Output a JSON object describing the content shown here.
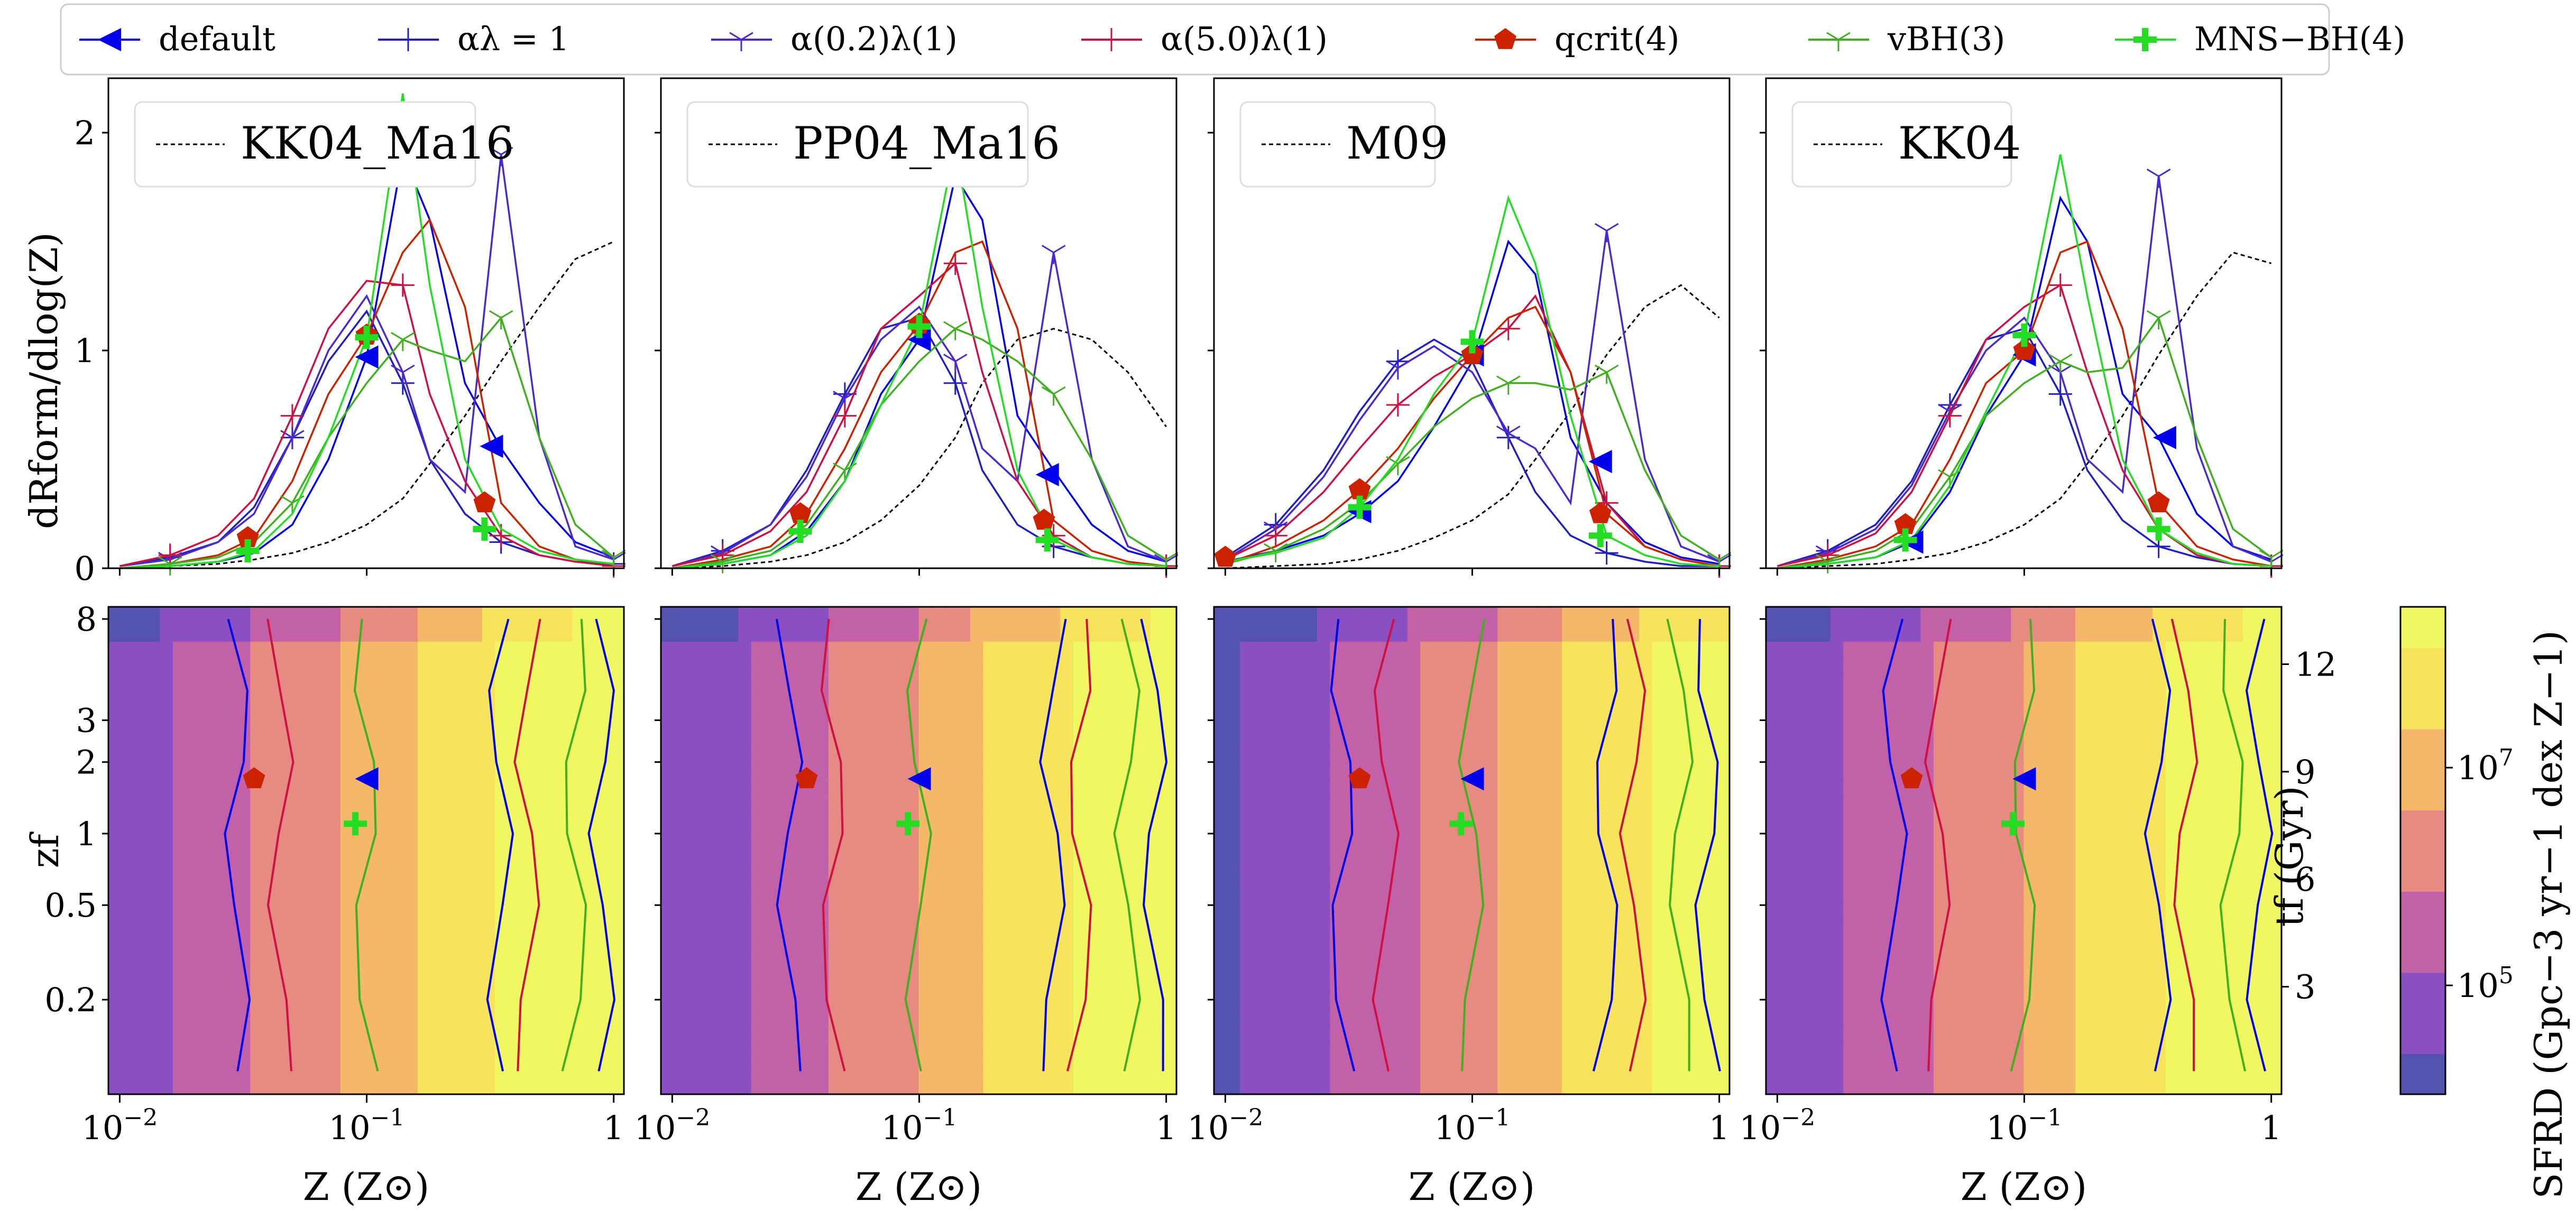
{
  "colors": {
    "default": "#0000ee",
    "alpha_lambda_1": "#2020c0",
    "alpha_0p2": "#4a2ad0",
    "alpha_5p0": "#d01040",
    "q_crit": "#cc2200",
    "v_bh": "#40b020",
    "m_ns_bh": "#22dd22",
    "observed": "#000000",
    "cmap": [
      "#5553b0",
      "#8a4fc2",
      "#c260a8",
      "#e78a82",
      "#f5b86a",
      "#f7e35c",
      "#f0f760"
    ]
  },
  "legend": [
    {
      "key": "default",
      "label": "default",
      "marker": "triangle-left"
    },
    {
      "key": "alpha_lambda_1",
      "label": "αλ = 1",
      "marker": "plus"
    },
    {
      "key": "alpha_0p2",
      "label": "α(0.2)λ(1)",
      "marker": "tri-down"
    },
    {
      "key": "alpha_5p0",
      "label": "α(5.0)λ(1)",
      "marker": "plus"
    },
    {
      "key": "q_crit",
      "label": "qcrit(4)",
      "marker": "pentagon"
    },
    {
      "key": "v_bh",
      "label": "vBH(3)",
      "marker": "tri-down"
    },
    {
      "key": "m_ns_bh",
      "label": "MNS−BH(4)",
      "marker": "plus-bold"
    }
  ],
  "axes": {
    "top_ylabel": "dRform/dlog(Z)",
    "bottom_ylabel": "zf",
    "xlabel": "Z (Z⊙)",
    "right_ylabel": "tf (Gyr)",
    "colorbar_label": "SFRD (Gpc−3 yr−1 dex Z−1)",
    "top_yticks": [
      "0",
      "1",
      "2"
    ],
    "bottom_yticks": [
      "0.2",
      "0.5",
      "1",
      "2",
      "3",
      "8"
    ],
    "right_yticks": [
      "3",
      "6",
      "9",
      "12"
    ],
    "xticks": [
      "10−2",
      "10−1",
      "1"
    ],
    "colorbar_ticks": [
      "105",
      "107"
    ]
  },
  "chart_data": [
    {
      "type": "line",
      "panel": "KK04_Ma16",
      "title": "KK04_Ma16",
      "xlabel": "Z (Z⊙)",
      "ylabel": "dRform/dlog(Z)",
      "xscale": "log",
      "xlim": [
        0.009,
        1.1
      ],
      "ylim": [
        0,
        2.25
      ],
      "x": [
        0.01,
        0.016,
        0.025,
        0.035,
        0.05,
        0.07,
        0.1,
        0.14,
        0.18,
        0.25,
        0.35,
        0.5,
        0.7,
        1.0
      ],
      "series": [
        {
          "key": "observed",
          "name": "KK04_Ma16",
          "values": [
            0.0,
            0.01,
            0.02,
            0.04,
            0.07,
            0.12,
            0.2,
            0.32,
            0.48,
            0.7,
            0.95,
            1.2,
            1.42,
            1.5
          ]
        },
        {
          "key": "default",
          "values": [
            0.0,
            0.01,
            0.03,
            0.07,
            0.2,
            0.5,
            0.97,
            1.9,
            1.6,
            0.85,
            0.55,
            0.3,
            0.12,
            0.05
          ]
        },
        {
          "key": "alpha_lambda_1",
          "values": [
            0.01,
            0.05,
            0.12,
            0.28,
            0.6,
            0.95,
            1.18,
            0.85,
            0.5,
            0.25,
            0.12,
            0.06,
            0.03,
            0.02
          ]
        },
        {
          "key": "alpha_0p2",
          "values": [
            0.01,
            0.04,
            0.12,
            0.25,
            0.6,
            1.0,
            1.25,
            0.9,
            0.5,
            0.35,
            1.9,
            0.6,
            0.1,
            0.04
          ]
        },
        {
          "key": "alpha_5p0",
          "values": [
            0.01,
            0.06,
            0.15,
            0.32,
            0.7,
            1.1,
            1.32,
            1.3,
            0.8,
            0.4,
            0.15,
            0.06,
            0.03,
            0.01
          ]
        },
        {
          "key": "q_crit",
          "values": [
            0.0,
            0.02,
            0.06,
            0.14,
            0.4,
            0.8,
            1.07,
            1.45,
            1.6,
            1.2,
            0.3,
            0.1,
            0.04,
            0.02
          ]
        },
        {
          "key": "v_bh",
          "values": [
            0.0,
            0.02,
            0.05,
            0.12,
            0.3,
            0.6,
            0.85,
            1.05,
            1.0,
            0.95,
            1.15,
            0.6,
            0.2,
            0.05
          ]
        },
        {
          "key": "m_ns_bh",
          "values": [
            0.0,
            0.01,
            0.03,
            0.08,
            0.25,
            0.6,
            1.06,
            2.18,
            1.3,
            0.5,
            0.18,
            0.08,
            0.04,
            0.02
          ]
        }
      ],
      "markers": {
        "default": [
          0.1,
          0.97,
          0.32,
          0.56
        ],
        "q_crit": [
          0.033,
          0.14,
          0.1,
          1.07,
          0.3,
          0.3
        ],
        "m_ns_bh": [
          0.033,
          0.08,
          0.1,
          1.06,
          0.3,
          0.18
        ]
      }
    },
    {
      "type": "line",
      "panel": "PP04_Ma16",
      "title": "PP04_Ma16",
      "xlabel": "Z (Z⊙)",
      "xscale": "log",
      "xlim": [
        0.009,
        1.1
      ],
      "ylim": [
        0,
        2.25
      ],
      "x": [
        0.01,
        0.016,
        0.025,
        0.035,
        0.05,
        0.07,
        0.1,
        0.14,
        0.18,
        0.25,
        0.35,
        0.5,
        0.7,
        1.0
      ],
      "series": [
        {
          "key": "observed",
          "name": "PP04_Ma16",
          "values": [
            0.0,
            0.01,
            0.03,
            0.06,
            0.12,
            0.22,
            0.38,
            0.6,
            0.85,
            1.05,
            1.1,
            1.05,
            0.9,
            0.65
          ]
        },
        {
          "key": "default",
          "values": [
            0.0,
            0.02,
            0.06,
            0.17,
            0.4,
            0.8,
            1.05,
            1.8,
            1.6,
            0.7,
            0.45,
            0.2,
            0.08,
            0.03
          ]
        },
        {
          "key": "alpha_lambda_1",
          "values": [
            0.01,
            0.08,
            0.2,
            0.45,
            0.8,
            1.1,
            1.15,
            0.85,
            0.45,
            0.2,
            0.1,
            0.05,
            0.02,
            0.01
          ]
        },
        {
          "key": "alpha_0p2",
          "values": [
            0.01,
            0.07,
            0.2,
            0.42,
            0.78,
            1.05,
            1.2,
            0.95,
            0.55,
            0.4,
            1.45,
            0.5,
            0.1,
            0.03
          ]
        },
        {
          "key": "alpha_5p0",
          "values": [
            0.01,
            0.06,
            0.17,
            0.35,
            0.7,
            1.1,
            1.25,
            1.4,
            0.9,
            0.4,
            0.15,
            0.05,
            0.02,
            0.01
          ]
        },
        {
          "key": "q_crit",
          "values": [
            0.0,
            0.04,
            0.1,
            0.25,
            0.55,
            0.9,
            1.12,
            1.45,
            1.5,
            1.1,
            0.22,
            0.08,
            0.03,
            0.01
          ]
        },
        {
          "key": "v_bh",
          "values": [
            0.0,
            0.03,
            0.08,
            0.2,
            0.45,
            0.75,
            0.95,
            1.1,
            1.05,
            0.95,
            0.8,
            0.5,
            0.15,
            0.04
          ]
        },
        {
          "key": "m_ns_bh",
          "values": [
            0.0,
            0.02,
            0.06,
            0.15,
            0.4,
            0.75,
            1.11,
            1.95,
            1.2,
            0.45,
            0.13,
            0.05,
            0.02,
            0.01
          ]
        }
      ],
      "markers": {
        "default": [
          0.1,
          1.05,
          0.33,
          0.43
        ],
        "q_crit": [
          0.033,
          0.25,
          0.1,
          1.12,
          0.32,
          0.22
        ],
        "m_ns_bh": [
          0.033,
          0.17,
          0.1,
          1.11,
          0.33,
          0.13
        ]
      }
    },
    {
      "type": "line",
      "panel": "M09",
      "title": "M09",
      "xlabel": "Z (Z⊙)",
      "xscale": "log",
      "xlim": [
        0.009,
        1.1
      ],
      "ylim": [
        0,
        2.25
      ],
      "x": [
        0.01,
        0.016,
        0.025,
        0.035,
        0.05,
        0.07,
        0.1,
        0.14,
        0.18,
        0.25,
        0.35,
        0.5,
        0.7,
        1.0
      ],
      "series": [
        {
          "key": "observed",
          "name": "M09",
          "values": [
            0.0,
            0.01,
            0.02,
            0.04,
            0.08,
            0.14,
            0.22,
            0.34,
            0.5,
            0.72,
            0.98,
            1.2,
            1.3,
            1.15
          ]
        },
        {
          "key": "default",
          "values": [
            0.03,
            0.08,
            0.15,
            0.25,
            0.4,
            0.65,
            0.95,
            1.5,
            1.35,
            0.6,
            0.3,
            0.12,
            0.05,
            0.02
          ]
        },
        {
          "key": "alpha_lambda_1",
          "values": [
            0.05,
            0.2,
            0.45,
            0.72,
            0.95,
            1.05,
            0.95,
            0.6,
            0.35,
            0.15,
            0.07,
            0.03,
            0.01,
            0.01
          ]
        },
        {
          "key": "alpha_0p2",
          "values": [
            0.04,
            0.18,
            0.42,
            0.68,
            0.92,
            1.02,
            0.9,
            0.62,
            0.55,
            0.3,
            1.55,
            0.5,
            0.1,
            0.03
          ]
        },
        {
          "key": "alpha_5p0",
          "values": [
            0.04,
            0.15,
            0.35,
            0.55,
            0.75,
            0.88,
            0.98,
            1.1,
            1.25,
            0.9,
            0.3,
            0.1,
            0.04,
            0.01
          ]
        },
        {
          "key": "q_crit",
          "values": [
            0.02,
            0.1,
            0.22,
            0.36,
            0.55,
            0.78,
            0.98,
            1.15,
            1.2,
            0.9,
            0.25,
            0.1,
            0.04,
            0.01
          ]
        },
        {
          "key": "v_bh",
          "values": [
            0.02,
            0.08,
            0.18,
            0.3,
            0.48,
            0.65,
            0.78,
            0.85,
            0.85,
            0.82,
            0.9,
            0.45,
            0.15,
            0.04
          ]
        },
        {
          "key": "m_ns_bh",
          "values": [
            0.03,
            0.07,
            0.14,
            0.28,
            0.5,
            0.8,
            1.04,
            1.7,
            1.4,
            0.7,
            0.15,
            0.06,
            0.02,
            0.01
          ]
        }
      ],
      "markers": {
        "default": [
          0.035,
          0.26,
          0.1,
          0.98,
          0.33,
          0.49
        ],
        "q_crit": [
          0.01,
          0.05,
          0.035,
          0.36,
          0.1,
          0.98,
          0.33,
          0.25
        ],
        "m_ns_bh": [
          0.035,
          0.28,
          0.1,
          1.04,
          0.33,
          0.15
        ]
      }
    },
    {
      "type": "line",
      "panel": "KK04",
      "title": "KK04",
      "xlabel": "Z (Z⊙)",
      "xscale": "log",
      "xlim": [
        0.009,
        1.1
      ],
      "ylim": [
        0,
        2.25
      ],
      "x": [
        0.01,
        0.016,
        0.025,
        0.035,
        0.05,
        0.07,
        0.1,
        0.14,
        0.18,
        0.25,
        0.35,
        0.5,
        0.7,
        1.0
      ],
      "series": [
        {
          "key": "observed",
          "name": "KK04",
          "values": [
            0.0,
            0.01,
            0.02,
            0.04,
            0.07,
            0.12,
            0.2,
            0.32,
            0.48,
            0.7,
            0.98,
            1.25,
            1.45,
            1.4
          ]
        },
        {
          "key": "default",
          "values": [
            0.0,
            0.02,
            0.05,
            0.12,
            0.35,
            0.7,
            0.98,
            1.7,
            1.5,
            0.8,
            0.6,
            0.25,
            0.1,
            0.04
          ]
        },
        {
          "key": "alpha_lambda_1",
          "values": [
            0.01,
            0.08,
            0.2,
            0.4,
            0.75,
            1.05,
            1.1,
            0.8,
            0.45,
            0.22,
            0.1,
            0.05,
            0.02,
            0.01
          ]
        },
        {
          "key": "alpha_0p2",
          "values": [
            0.01,
            0.07,
            0.18,
            0.38,
            0.72,
            1.0,
            1.15,
            0.9,
            0.5,
            0.35,
            1.8,
            0.55,
            0.1,
            0.03
          ]
        },
        {
          "key": "alpha_5p0",
          "values": [
            0.01,
            0.06,
            0.16,
            0.35,
            0.7,
            1.05,
            1.2,
            1.3,
            0.9,
            0.45,
            0.18,
            0.06,
            0.02,
            0.01
          ]
        },
        {
          "key": "q_crit",
          "values": [
            0.0,
            0.04,
            0.1,
            0.2,
            0.5,
            0.85,
            1.0,
            1.45,
            1.5,
            1.1,
            0.3,
            0.1,
            0.04,
            0.01
          ]
        },
        {
          "key": "v_bh",
          "values": [
            0.0,
            0.03,
            0.08,
            0.18,
            0.42,
            0.7,
            0.85,
            0.95,
            0.9,
            0.92,
            1.15,
            0.6,
            0.18,
            0.05
          ]
        },
        {
          "key": "m_ns_bh",
          "values": [
            0.0,
            0.02,
            0.05,
            0.13,
            0.38,
            0.72,
            1.07,
            1.9,
            1.25,
            0.5,
            0.18,
            0.07,
            0.02,
            0.01
          ]
        }
      ],
      "markers": {
        "default": [
          0.035,
          0.12,
          0.1,
          0.98,
          0.37,
          0.6
        ],
        "q_crit": [
          0.033,
          0.2,
          0.1,
          1.0,
          0.35,
          0.3
        ],
        "m_ns_bh": [
          0.033,
          0.13,
          0.1,
          1.07,
          0.35,
          0.18
        ]
      }
    },
    {
      "type": "heatmap",
      "panel": "bottom_row",
      "xlabel": "Z (Z⊙)",
      "ylabel": "zf",
      "xscale": "log",
      "yscale": "log",
      "xlim": [
        0.009,
        1.1
      ],
      "ylim": [
        0.08,
        9
      ],
      "colorbar": {
        "label": "SFRD (Gpc−3 yr−1 dex Z−1)",
        "scale": "log",
        "range": [
          10000,
          300000000
        ]
      }
    }
  ]
}
